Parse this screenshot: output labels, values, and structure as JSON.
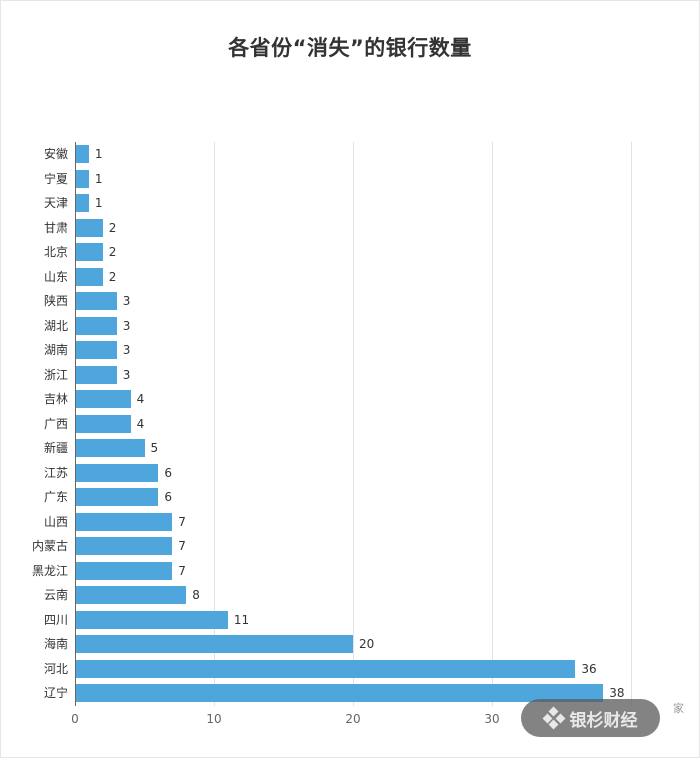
{
  "chart_data": {
    "type": "bar",
    "orientation": "horizontal",
    "title": "各省份“消失”的银行数量",
    "xlabel": "",
    "ylabel": "",
    "unit": "家",
    "xlim": [
      0,
      40
    ],
    "xticks": [
      0,
      10,
      20,
      30,
      40
    ],
    "xtick_labels": [
      "0",
      "10",
      "20",
      "30",
      ""
    ],
    "grid": true,
    "bar_color": "#4ea6dc",
    "categories": [
      "安徽",
      "宁夏",
      "天津",
      "甘肃",
      "北京",
      "山东",
      "陕西",
      "湖北",
      "湖南",
      "浙江",
      "吉林",
      "广西",
      "新疆",
      "江苏",
      "广东",
      "山西",
      "内蒙古",
      "黑龙江",
      "云南",
      "四川",
      "海南",
      "河北",
      "辽宁"
    ],
    "values": [
      1,
      1,
      1,
      2,
      2,
      2,
      3,
      3,
      3,
      3,
      4,
      4,
      5,
      6,
      6,
      7,
      7,
      7,
      8,
      11,
      20,
      36,
      38
    ]
  },
  "watermark": {
    "text": "银杉财经",
    "icon": "diamond-cluster-icon"
  }
}
